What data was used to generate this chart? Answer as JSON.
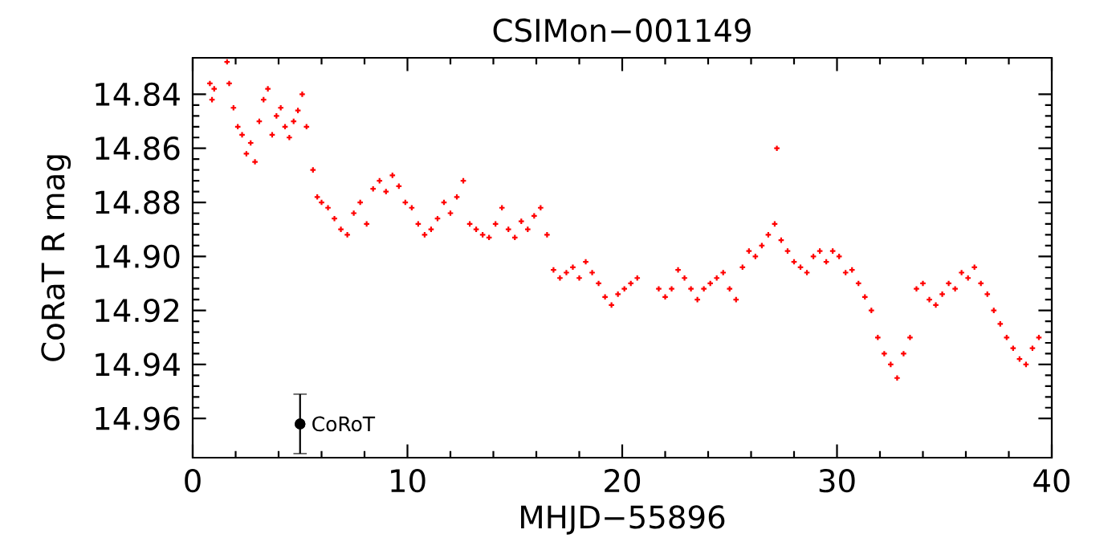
{
  "chart_data": {
    "type": "scatter",
    "title": "CSIMon−001149",
    "xlabel": "MHJD−55896",
    "ylabel": "CoRaT R mag",
    "xlim": [
      0,
      40
    ],
    "xticks": [
      0,
      10,
      20,
      30,
      40
    ],
    "ylim": [
      14.9745,
      14.8265
    ],
    "yticks": [
      {
        "value": 14.84,
        "label": "14.84"
      },
      {
        "value": 14.86,
        "label": "14.86"
      },
      {
        "value": 14.88,
        "label": "14.88"
      },
      {
        "value": 14.9,
        "label": "14.90"
      },
      {
        "value": 14.92,
        "label": "14.92"
      },
      {
        "value": 14.94,
        "label": "14.94"
      },
      {
        "value": 14.96,
        "label": "14.96"
      }
    ],
    "grid": false,
    "series": [
      {
        "color": "#ff0000",
        "marker": "cross",
        "x": [
          0.8,
          0.9,
          1.0,
          1.6,
          1.7,
          1.9,
          2.1,
          2.3,
          2.5,
          2.7,
          2.9,
          3.1,
          3.3,
          3.5,
          3.7,
          3.9,
          4.1,
          4.3,
          4.5,
          4.7,
          4.9,
          5.1,
          5.3,
          5.6,
          5.8,
          6.0,
          6.3,
          6.6,
          6.9,
          7.2,
          7.5,
          7.8,
          8.1,
          8.4,
          8.7,
          9.0,
          9.3,
          9.6,
          9.9,
          10.2,
          10.5,
          10.8,
          11.1,
          11.4,
          11.7,
          12.0,
          12.3,
          12.6,
          12.9,
          13.2,
          13.5,
          13.8,
          14.1,
          14.4,
          14.7,
          15.0,
          15.3,
          15.6,
          15.9,
          16.2,
          16.5,
          16.8,
          17.1,
          17.4,
          17.7,
          18.0,
          18.3,
          18.6,
          18.9,
          19.2,
          19.5,
          19.8,
          20.1,
          20.4,
          20.7,
          21.7,
          22.0,
          22.3,
          22.6,
          22.9,
          23.2,
          23.5,
          23.8,
          24.1,
          24.4,
          24.7,
          25.0,
          25.3,
          25.6,
          25.9,
          26.2,
          26.5,
          26.8,
          27.1,
          27.2,
          27.4,
          27.7,
          28.0,
          28.3,
          28.6,
          28.9,
          29.2,
          29.5,
          29.8,
          30.1,
          30.4,
          30.7,
          31.0,
          31.3,
          31.6,
          31.9,
          32.2,
          32.5,
          32.8,
          33.1,
          33.4,
          33.7,
          34.0,
          34.3,
          34.6,
          34.9,
          35.2,
          35.5,
          35.8,
          36.1,
          36.4,
          36.7,
          37.0,
          37.3,
          37.6,
          37.9,
          38.2,
          38.5,
          38.8,
          39.1,
          39.4
        ],
        "values": [
          14.836,
          14.842,
          14.838,
          14.828,
          14.836,
          14.845,
          14.852,
          14.855,
          14.862,
          14.858,
          14.865,
          14.85,
          14.842,
          14.838,
          14.855,
          14.848,
          14.845,
          14.852,
          14.856,
          14.85,
          14.846,
          14.84,
          14.852,
          14.868,
          14.878,
          14.88,
          14.882,
          14.886,
          14.89,
          14.892,
          14.884,
          14.88,
          14.888,
          14.875,
          14.872,
          14.876,
          14.87,
          14.874,
          14.88,
          14.882,
          14.888,
          14.892,
          14.89,
          14.886,
          14.88,
          14.884,
          14.878,
          14.872,
          14.888,
          14.89,
          14.892,
          14.893,
          14.888,
          14.882,
          14.89,
          14.893,
          14.887,
          14.89,
          14.885,
          14.882,
          14.892,
          14.905,
          14.908,
          14.906,
          14.904,
          14.908,
          14.902,
          14.906,
          14.91,
          14.915,
          14.918,
          14.914,
          14.912,
          14.91,
          14.908,
          14.912,
          14.915,
          14.912,
          14.905,
          14.908,
          14.912,
          14.916,
          14.912,
          14.91,
          14.908,
          14.906,
          14.912,
          14.916,
          14.904,
          14.898,
          14.9,
          14.896,
          14.892,
          14.888,
          14.86,
          14.894,
          14.898,
          14.902,
          14.904,
          14.906,
          14.9,
          14.898,
          14.902,
          14.898,
          14.9,
          14.906,
          14.905,
          14.91,
          14.915,
          14.92,
          14.93,
          14.936,
          14.94,
          14.945,
          14.936,
          14.93,
          14.912,
          14.91,
          14.916,
          14.918,
          14.914,
          14.91,
          14.912,
          14.906,
          14.908,
          14.904,
          14.91,
          14.914,
          14.92,
          14.925,
          14.93,
          14.934,
          14.938,
          14.94,
          14.934,
          14.93
        ]
      },
      {
        "name": "CoRoT",
        "color": "#000000",
        "marker": "circle",
        "x": [
          5
        ],
        "values": [
          14.962
        ],
        "errors": [
          0.011
        ]
      }
    ]
  }
}
